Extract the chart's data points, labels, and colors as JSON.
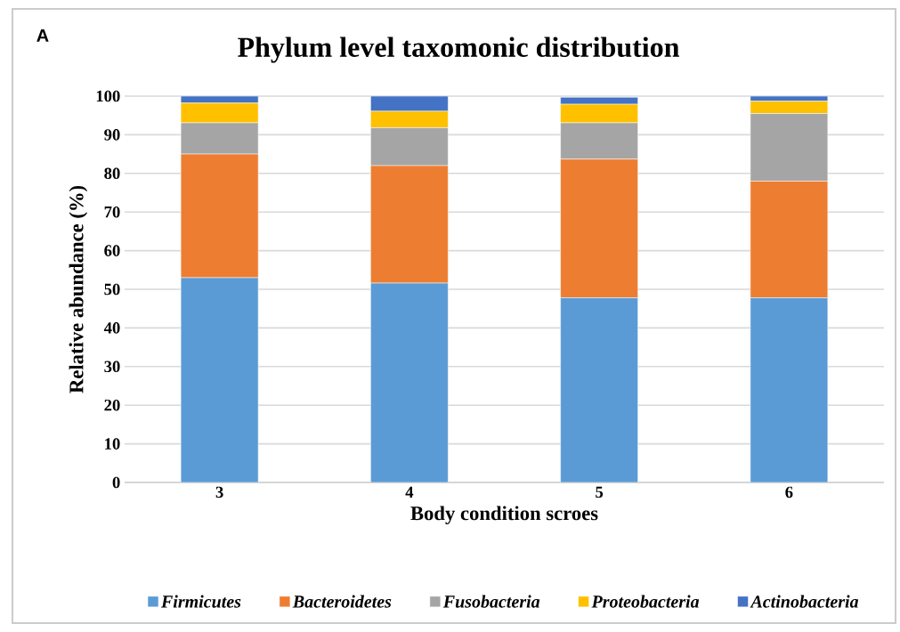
{
  "chart_data": {
    "type": "bar",
    "stacked": true,
    "title": "Phylum level taxomonic distribution",
    "xlabel": "Body condition scroes",
    "ylabel": "Relative abundance (%)",
    "annotations": [
      "A"
    ],
    "categories": [
      "3",
      "4",
      "5",
      "6"
    ],
    "series": [
      {
        "name": "Firmicutes",
        "color": "#5b9bd5",
        "values": [
          53.0,
          51.6,
          47.8,
          47.8
        ]
      },
      {
        "name": "Bacteroidetes",
        "color": "#ed7d31",
        "values": [
          32.0,
          30.4,
          35.9,
          30.2
        ]
      },
      {
        "name": "Fusobacteria",
        "color": "#a5a5a5",
        "values": [
          8.1,
          9.8,
          9.4,
          17.5
        ]
      },
      {
        "name": "Proteobacteria",
        "color": "#ffc000",
        "values": [
          5.1,
          4.3,
          4.8,
          3.2
        ]
      },
      {
        "name": "Actinobacteria",
        "color": "#4472c4",
        "values": [
          1.8,
          3.9,
          1.8,
          1.3
        ]
      }
    ],
    "ylim": [
      0,
      100
    ],
    "yticks": [
      0,
      10,
      20,
      30,
      40,
      50,
      60,
      70,
      80,
      90,
      100
    ],
    "grid": "y",
    "legend": "bottom"
  }
}
